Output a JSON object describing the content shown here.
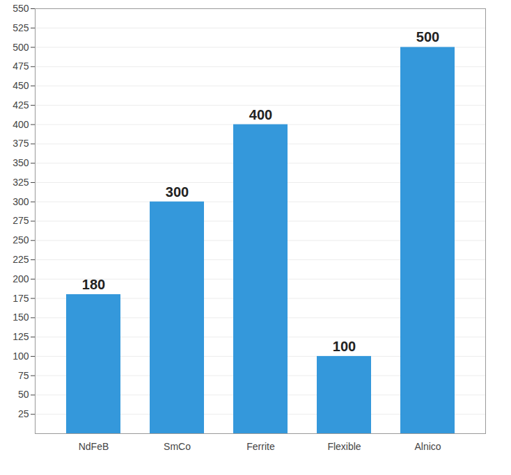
{
  "chart_data": {
    "type": "bar",
    "categories": [
      "NdFeB",
      "SmCo",
      "Ferrite",
      "Flexible",
      "Alnico"
    ],
    "values": [
      180,
      300,
      400,
      100,
      500
    ],
    "color": "#3498db",
    "ylim": [
      0,
      550
    ],
    "yticks": [
      25,
      50,
      75,
      100,
      125,
      150,
      175,
      200,
      225,
      250,
      275,
      300,
      325,
      350,
      375,
      400,
      425,
      450,
      475,
      500,
      525,
      550
    ],
    "grid": true,
    "data_labels": true
  }
}
